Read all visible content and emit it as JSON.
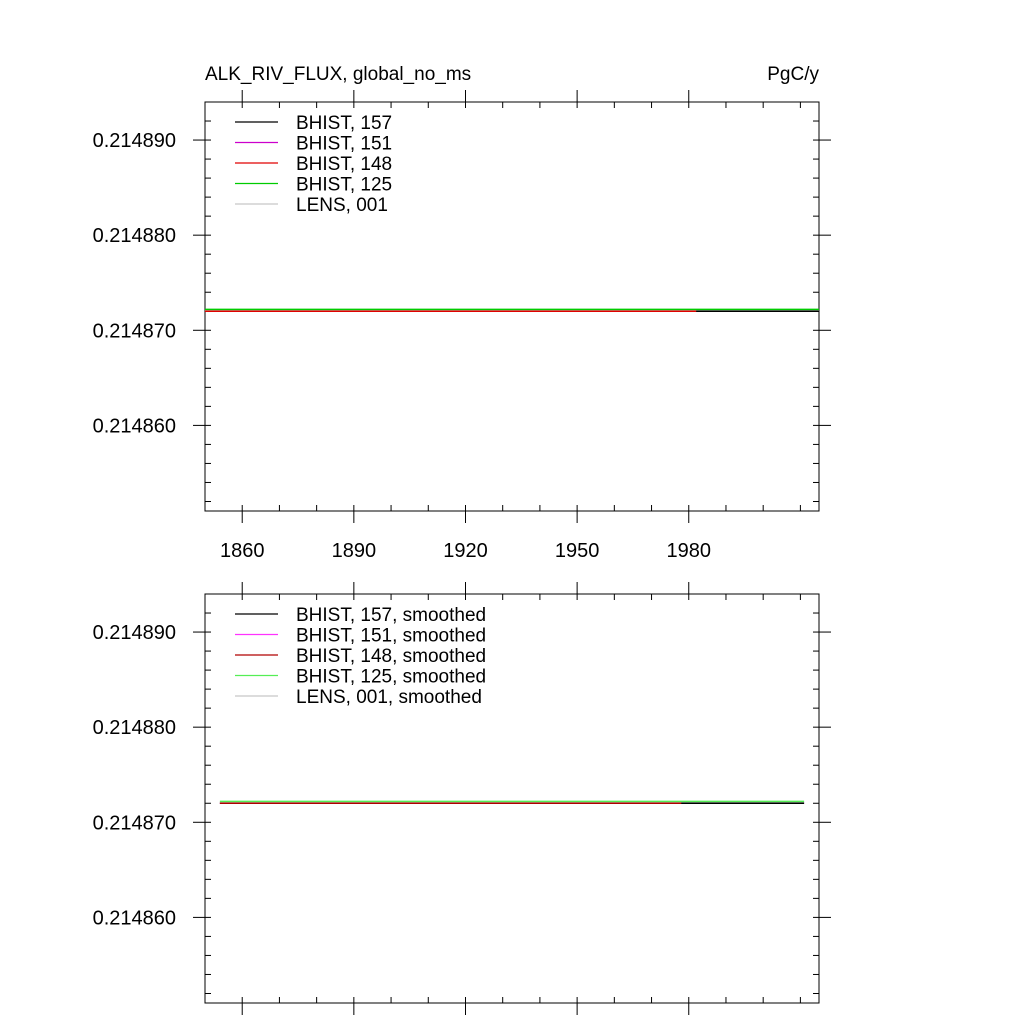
{
  "header": {
    "title_left": "ALK_RIV_FLUX, global_no_ms",
    "title_right": "PgC/y"
  },
  "chart_data": [
    {
      "type": "line",
      "title": "ALK_RIV_FLUX, global_no_ms",
      "units": "PgC/y",
      "xlim": [
        1850,
        2015
      ],
      "ylim": [
        0.214851,
        0.214894
      ],
      "x_ticks": [
        "1860",
        "1890",
        "1920",
        "1950",
        "1980"
      ],
      "show_x_tick_labels": true,
      "y_ticks": [
        "0.214860",
        "0.214870",
        "0.214880",
        "0.214890"
      ],
      "grid": false,
      "legend_position": "top-left",
      "series": [
        {
          "name": "BHIST, 157",
          "color": "#000000",
          "x": [
            1850,
            2015
          ],
          "y": [
            0.214872,
            0.214872
          ]
        },
        {
          "name": "BHIST, 151",
          "color": "#cc00cc",
          "x": [
            1850,
            2015
          ],
          "y": [
            0.214872,
            0.214872
          ]
        },
        {
          "name": "BHIST, 148",
          "color": "#e00000",
          "x": [
            1850,
            1982
          ],
          "y": [
            0.214872,
            0.214872
          ]
        },
        {
          "name": "BHIST, 125",
          "color": "#00cc00",
          "x": [
            1850,
            2015
          ],
          "y": [
            0.2148722,
            0.2148722
          ]
        },
        {
          "name": "LENS, 001",
          "color": "#c8c8c8",
          "x": [
            1850,
            2015
          ],
          "y": [
            0.2148721,
            0.2148721
          ]
        }
      ]
    },
    {
      "type": "line",
      "xlim": [
        1850,
        2015
      ],
      "ylim": [
        0.214851,
        0.214894
      ],
      "x_ticks": [
        "1860",
        "1890",
        "1920",
        "1950",
        "1980"
      ],
      "show_x_tick_labels": false,
      "y_ticks": [
        "0.214860",
        "0.214870",
        "0.214880",
        "0.214890"
      ],
      "grid": false,
      "legend_position": "top-left",
      "series": [
        {
          "name": "BHIST, 157, smoothed",
          "color": "#000000",
          "x": [
            1854,
            2011
          ],
          "y": [
            0.214872,
            0.214872
          ]
        },
        {
          "name": "BHIST, 151, smoothed",
          "color": "#ff33ff",
          "x": [
            1854,
            2011
          ],
          "y": [
            0.214872,
            0.214872
          ]
        },
        {
          "name": "BHIST, 148, smoothed",
          "color": "#b00000",
          "x": [
            1854,
            1978
          ],
          "y": [
            0.214872,
            0.214872
          ]
        },
        {
          "name": "BHIST, 125, smoothed",
          "color": "#55ee55",
          "x": [
            1854,
            2011
          ],
          "y": [
            0.2148722,
            0.2148722
          ]
        },
        {
          "name": "LENS, 001, smoothed",
          "color": "#c8c8c8",
          "x": [
            1854,
            2011
          ],
          "y": [
            0.2148721,
            0.2148721
          ]
        }
      ]
    }
  ]
}
